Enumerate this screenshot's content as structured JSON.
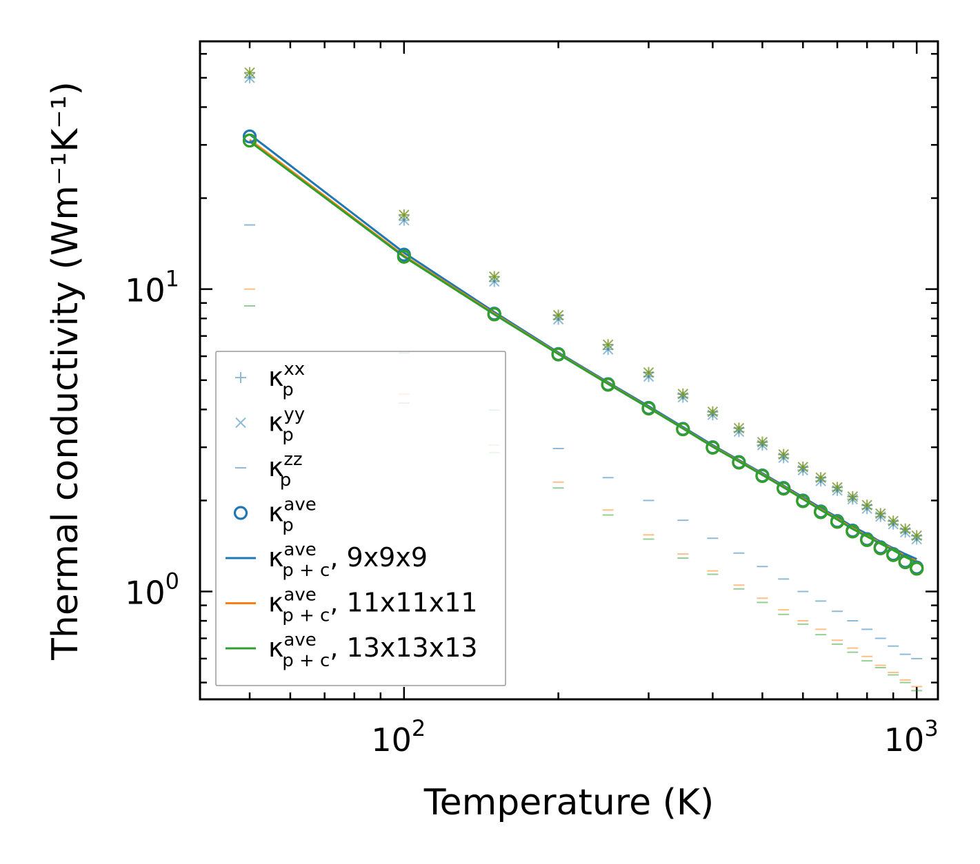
{
  "chart_data": {
    "type": "scatter",
    "title": "",
    "xlabel": "Temperature (K)",
    "ylabel": "Thermal conductivity (Wm⁻¹K⁻¹)",
    "xscale": "log",
    "yscale": "log",
    "xlim": [
      40,
      1100
    ],
    "ylim": [
      0.44,
      66
    ],
    "x_ticks": [
      {
        "value": 100,
        "base": "10",
        "exp": "2"
      },
      {
        "value": 1000,
        "base": "10",
        "exp": "3"
      }
    ],
    "y_ticks": [
      {
        "value": 1,
        "base": "10",
        "exp": "0"
      },
      {
        "value": 10,
        "base": "10",
        "exp": "1"
      }
    ],
    "colors": {
      "c9": "#1f77b4",
      "c11": "#ff7f0e",
      "c13": "#2ca02c"
    },
    "temperatures": [
      50,
      100,
      150,
      200,
      250,
      300,
      350,
      400,
      450,
      500,
      550,
      600,
      650,
      700,
      750,
      800,
      850,
      900,
      950,
      1000
    ],
    "series": [
      {
        "name": "kxx 9x9x9",
        "marker": "plus",
        "color": "#1f77b4",
        "values": [
          50.0,
          16.9,
          10.6,
          7.95,
          6.32,
          5.14,
          4.39,
          3.84,
          3.38,
          3.05,
          2.77,
          2.52,
          2.32,
          2.16,
          2.02,
          1.88,
          1.77,
          1.67,
          1.57,
          1.49
        ]
      },
      {
        "name": "kxx 11x11x11",
        "marker": "plus",
        "color": "#ff7f0e",
        "values": [
          52.0,
          17.6,
          11.0,
          8.2,
          6.55,
          5.3,
          4.5,
          3.93,
          3.47,
          3.12,
          2.84,
          2.58,
          2.38,
          2.21,
          2.06,
          1.93,
          1.81,
          1.71,
          1.61,
          1.53
        ]
      },
      {
        "name": "kxx 13x13x13",
        "marker": "plus",
        "color": "#2ca02c",
        "values": [
          52.0,
          17.6,
          11.0,
          8.2,
          6.55,
          5.3,
          4.5,
          3.93,
          3.47,
          3.12,
          2.84,
          2.58,
          2.38,
          2.21,
          2.06,
          1.93,
          1.81,
          1.71,
          1.61,
          1.53
        ]
      },
      {
        "name": "kyy 9x9x9",
        "marker": "x",
        "color": "#1f77b4",
        "values": [
          50.0,
          16.9,
          10.6,
          7.95,
          6.32,
          5.14,
          4.39,
          3.84,
          3.38,
          3.05,
          2.77,
          2.52,
          2.32,
          2.16,
          2.02,
          1.88,
          1.77,
          1.67,
          1.57,
          1.49
        ]
      },
      {
        "name": "kyy 11x11x11",
        "marker": "x",
        "color": "#ff7f0e",
        "values": [
          52.0,
          17.6,
          11.0,
          8.2,
          6.55,
          5.3,
          4.5,
          3.93,
          3.47,
          3.12,
          2.84,
          2.58,
          2.38,
          2.21,
          2.06,
          1.93,
          1.81,
          1.71,
          1.61,
          1.53
        ]
      },
      {
        "name": "kyy 13x13x13",
        "marker": "x",
        "color": "#2ca02c",
        "values": [
          52.0,
          17.6,
          11.0,
          8.2,
          6.55,
          5.3,
          4.5,
          3.93,
          3.47,
          3.12,
          2.84,
          2.58,
          2.38,
          2.21,
          2.06,
          1.93,
          1.81,
          1.71,
          1.61,
          1.53
        ]
      },
      {
        "name": "kzz 9x9x9",
        "marker": "hline",
        "color": "#1f77b4",
        "values": [
          16.3,
          6.15,
          3.98,
          2.97,
          2.38,
          2.0,
          1.72,
          1.5,
          1.34,
          1.21,
          1.1,
          1.0,
          0.93,
          0.86,
          0.8,
          0.75,
          0.7,
          0.66,
          0.62,
          0.6
        ]
      },
      {
        "name": "kzz 11x11x11",
        "marker": "hline",
        "color": "#ff7f0e",
        "values": [
          10.0,
          4.5,
          3.05,
          2.3,
          1.86,
          1.54,
          1.33,
          1.17,
          1.05,
          0.95,
          0.87,
          0.8,
          0.75,
          0.69,
          0.65,
          0.61,
          0.57,
          0.54,
          0.51,
          0.485
        ]
      },
      {
        "name": "kzz 13x13x13",
        "marker": "hline",
        "color": "#2ca02c",
        "values": [
          8.8,
          4.2,
          2.88,
          2.2,
          1.79,
          1.49,
          1.29,
          1.14,
          1.02,
          0.92,
          0.84,
          0.78,
          0.72,
          0.67,
          0.63,
          0.59,
          0.56,
          0.53,
          0.5,
          0.47
        ]
      },
      {
        "name": "kave 9x9x9",
        "marker": "circle",
        "color": "#1f77b4",
        "values": [
          32.0,
          13.0,
          8.3,
          6.1,
          4.85,
          4.05,
          3.45,
          3.0,
          2.68,
          2.42,
          2.2,
          2.0,
          1.84,
          1.71,
          1.59,
          1.49,
          1.4,
          1.33,
          1.26,
          1.2
        ]
      },
      {
        "name": "kave 11x11x11",
        "marker": "circle",
        "color": "#ff7f0e",
        "values": [
          31.0,
          12.8,
          8.25,
          6.08,
          4.83,
          4.03,
          3.44,
          2.99,
          2.67,
          2.41,
          2.19,
          1.99,
          1.83,
          1.7,
          1.58,
          1.48,
          1.39,
          1.32,
          1.25,
          1.19
        ]
      },
      {
        "name": "kave 13x13x13",
        "marker": "circle",
        "color": "#2ca02c",
        "values": [
          31.0,
          12.8,
          8.25,
          6.08,
          4.83,
          4.03,
          3.44,
          2.99,
          2.67,
          2.41,
          2.19,
          1.99,
          1.83,
          1.7,
          1.58,
          1.48,
          1.39,
          1.32,
          1.25,
          1.19
        ]
      },
      {
        "name": "kpc 9x9x9",
        "marker": "line",
        "color": "#1f77b4",
        "values": [
          32.5,
          13.2,
          8.4,
          6.17,
          4.92,
          4.1,
          3.5,
          3.05,
          2.72,
          2.46,
          2.24,
          2.05,
          1.89,
          1.76,
          1.64,
          1.55,
          1.46,
          1.39,
          1.33,
          1.28
        ]
      },
      {
        "name": "kpc 11x11x11",
        "marker": "line",
        "color": "#ff7f0e",
        "values": [
          31.2,
          12.9,
          8.3,
          6.12,
          4.88,
          4.06,
          3.47,
          3.02,
          2.7,
          2.44,
          2.22,
          2.03,
          1.87,
          1.74,
          1.62,
          1.53,
          1.45,
          1.38,
          1.31,
          1.26
        ]
      },
      {
        "name": "kpc 13x13x13",
        "marker": "line",
        "color": "#2ca02c",
        "values": [
          30.8,
          12.8,
          8.25,
          6.1,
          4.86,
          4.05,
          3.46,
          3.01,
          2.69,
          2.43,
          2.21,
          2.02,
          1.86,
          1.73,
          1.61,
          1.52,
          1.44,
          1.37,
          1.3,
          1.25
        ]
      }
    ],
    "legend": {
      "location": "lower-left",
      "entries": [
        {
          "marker": "plus",
          "color": "#1f77b4",
          "symbol": "κ",
          "sup": "xx",
          "sub": "p",
          "suffix": ""
        },
        {
          "marker": "x",
          "color": "#1f77b4",
          "symbol": "κ",
          "sup": "yy",
          "sub": "p",
          "suffix": ""
        },
        {
          "marker": "hline",
          "color": "#1f77b4",
          "symbol": "κ",
          "sup": "zz",
          "sub": "p",
          "suffix": ""
        },
        {
          "marker": "circle",
          "color": "#1f77b4",
          "symbol": "κ",
          "sup": "ave",
          "sub": "p",
          "suffix": ""
        },
        {
          "marker": "line",
          "color": "#1f77b4",
          "symbol": "κ",
          "sup": "ave",
          "sub": "p + c",
          "suffix": ", 9x9x9"
        },
        {
          "marker": "line",
          "color": "#ff7f0e",
          "symbol": "κ",
          "sup": "ave",
          "sub": "p + c",
          "suffix": ", 11x11x11"
        },
        {
          "marker": "line",
          "color": "#2ca02c",
          "symbol": "κ",
          "sup": "ave",
          "sub": "p + c",
          "suffix": ", 13x13x13"
        }
      ]
    }
  }
}
